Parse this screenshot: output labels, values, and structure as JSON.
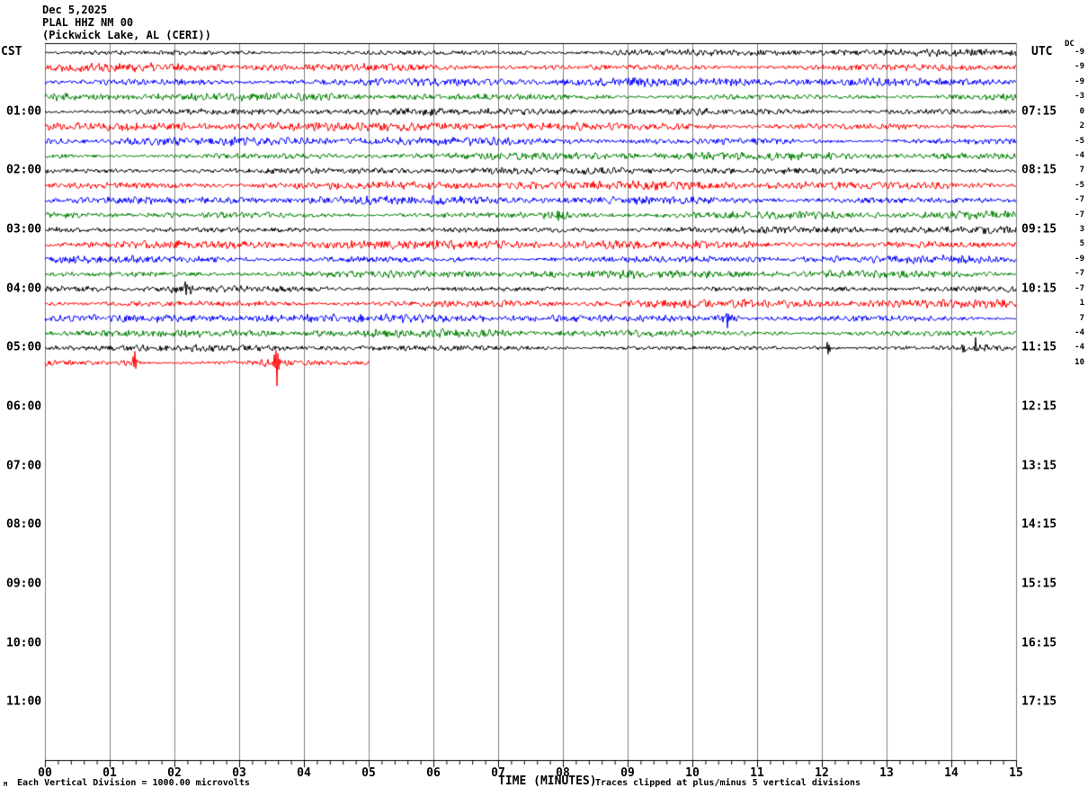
{
  "header": {
    "date": "Dec 5,2025",
    "station": "PLAL HHZ NM 00",
    "location": "(Pickwick Lake, AL (CERI))",
    "left_timezone": "CST",
    "right_timezone": "UTC",
    "dc_label": "DC"
  },
  "footer": {
    "corner_glyph": "M",
    "scale_note": "Each Vertical Division = 1000.00 microvolts",
    "x_axis_title": "TIME (MINUTES)",
    "clip_note": "Traces clipped at plus/minus 5 vertical divisions"
  },
  "chart_data": {
    "type": "line",
    "title": "PLAL HHZ NM 00 helicorder, Dec 5,2025, Pickwick Lake, AL (CERI)",
    "xlabel": "TIME (MINUTES)",
    "x_tick_labels": [
      "00",
      "01",
      "02",
      "03",
      "04",
      "05",
      "06",
      "07",
      "08",
      "09",
      "10",
      "11",
      "12",
      "13",
      "14",
      "15"
    ],
    "minutes_per_row": 15,
    "minor_ticks_per_minute": 5,
    "rows_per_hour": 4,
    "total_rows": 48,
    "label_row_start": 4,
    "label_row_step": 4,
    "left_hour_labels": [
      "01:00",
      "02:00",
      "03:00",
      "04:00",
      "05:00",
      "06:00",
      "07:00",
      "08:00",
      "09:00",
      "10:00",
      "11:00"
    ],
    "right_hour_labels": [
      "07:15",
      "08:15",
      "09:15",
      "10:15",
      "11:15",
      "12:15",
      "13:15",
      "14:15",
      "15:15",
      "16:15",
      "17:15"
    ],
    "colors": {
      "cycle": [
        "#000000",
        "#ff0000",
        "#0000ff",
        "#008000"
      ],
      "grid": "#808080",
      "axis": "#000000"
    },
    "traces": [
      {
        "row": 0,
        "dc": -9,
        "end_min": 15,
        "amp": 2.4,
        "seed": 11
      },
      {
        "row": 1,
        "dc": -9,
        "end_min": 15,
        "amp": 3.1,
        "seed": 22
      },
      {
        "row": 2,
        "dc": -9,
        "end_min": 15,
        "amp": 3.0,
        "seed": 33
      },
      {
        "row": 3,
        "dc": -3,
        "end_min": 15,
        "amp": 2.8,
        "seed": 44
      },
      {
        "row": 4,
        "dc": 0,
        "end_min": 15,
        "amp": 2.5,
        "seed": 55
      },
      {
        "row": 5,
        "dc": 2,
        "end_min": 15,
        "amp": 3.1,
        "seed": 66
      },
      {
        "row": 6,
        "dc": -5,
        "end_min": 15,
        "amp": 3.0,
        "seed": 77
      },
      {
        "row": 7,
        "dc": -4,
        "end_min": 15,
        "amp": 2.8,
        "seed": 88
      },
      {
        "row": 8,
        "dc": 7,
        "end_min": 15,
        "amp": 2.4,
        "seed": 99
      },
      {
        "row": 9,
        "dc": -5,
        "end_min": 15,
        "amp": 3.1,
        "seed": 110
      },
      {
        "row": 10,
        "dc": -7,
        "end_min": 15,
        "amp": 3.0,
        "seed": 121
      },
      {
        "row": 11,
        "dc": -7,
        "end_min": 15,
        "amp": 2.9,
        "seed": 132
      },
      {
        "row": 12,
        "dc": 3,
        "end_min": 15,
        "amp": 2.6,
        "seed": 143
      },
      {
        "row": 13,
        "dc": 5,
        "end_min": 15,
        "amp": 3.2,
        "seed": 154
      },
      {
        "row": 14,
        "dc": -9,
        "end_min": 15,
        "amp": 3.0,
        "seed": 165
      },
      {
        "row": 15,
        "dc": -7,
        "end_min": 15,
        "amp": 2.8,
        "seed": 176
      },
      {
        "row": 16,
        "dc": -7,
        "end_min": 15,
        "amp": 2.4,
        "seed": 187
      },
      {
        "row": 17,
        "dc": 1,
        "end_min": 15,
        "amp": 3.0,
        "seed": 198
      },
      {
        "row": 18,
        "dc": 7,
        "end_min": 15,
        "amp": 3.0,
        "seed": 209
      },
      {
        "row": 19,
        "dc": -4,
        "end_min": 15,
        "amp": 2.8,
        "seed": 220
      },
      {
        "row": 20,
        "dc": -4,
        "end_min": 15,
        "amp": 2.3,
        "seed": 231
      },
      {
        "row": 21,
        "dc": 10,
        "end_min": 5,
        "amp": 2.6,
        "seed": 242
      }
    ],
    "events": [
      {
        "row": 11,
        "min": 7.92,
        "shape": [
          5,
          -6,
          4,
          -2
        ]
      },
      {
        "row": 16,
        "min": 2.16,
        "shape": [
          9,
          -5,
          3
        ]
      },
      {
        "row": 18,
        "min": 10.52,
        "shape": [
          4,
          6,
          -12,
          5,
          -3
        ]
      },
      {
        "row": 20,
        "min": 12.08,
        "shape": [
          6,
          -6,
          4,
          -3
        ]
      },
      {
        "row": 20,
        "min": 14.38,
        "shape": [
          11,
          -4,
          2
        ]
      },
      {
        "row": 21,
        "min": 1.36,
        "shape": [
          8,
          -5,
          12,
          -6,
          3
        ]
      },
      {
        "row": 21,
        "min": 3.54,
        "shape": [
          7,
          -6,
          14,
          -28,
          12,
          -6,
          4
        ]
      }
    ]
  }
}
